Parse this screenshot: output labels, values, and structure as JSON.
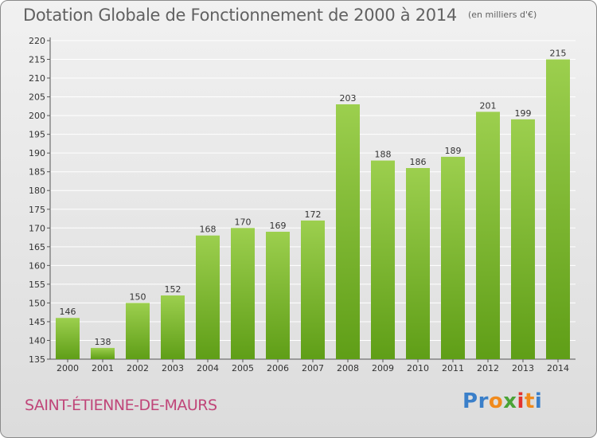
{
  "title": "Dotation Globale de Fonctionnement de 2000 à 2014",
  "unit_note": "(en milliers d'€)",
  "municipality": "SAINT-ÉTIENNE-DE-MAURS",
  "logo": "Proxiti",
  "colors": {
    "bar_top": "#9ccf4e",
    "bar_bottom": "#5f9e17",
    "title_text": "#616161",
    "municipality_text": "#c04679",
    "grid": "#ffffff",
    "logo_letters": [
      "#3a7fc9",
      "#3a7fc9",
      "#f08a1c",
      "#4aa336",
      "#e2322f",
      "#f08a1c",
      "#3a7fc9"
    ]
  },
  "chart_data": {
    "type": "bar",
    "title": "Dotation Globale de Fonctionnement de 2000 à 2014",
    "xlabel": "",
    "ylabel": "",
    "categories": [
      "2000",
      "2001",
      "2002",
      "2003",
      "2004",
      "2005",
      "2006",
      "2007",
      "2008",
      "2009",
      "2010",
      "2011",
      "2012",
      "2013",
      "2014"
    ],
    "values": [
      146,
      138,
      150,
      152,
      168,
      170,
      169,
      172,
      203,
      188,
      186,
      189,
      201,
      199,
      215
    ],
    "ylim": [
      135,
      220
    ],
    "yticks": [
      135,
      140,
      145,
      150,
      155,
      160,
      165,
      170,
      175,
      180,
      185,
      190,
      195,
      200,
      205,
      210,
      215,
      220
    ],
    "grid": true,
    "data_labels": true
  }
}
